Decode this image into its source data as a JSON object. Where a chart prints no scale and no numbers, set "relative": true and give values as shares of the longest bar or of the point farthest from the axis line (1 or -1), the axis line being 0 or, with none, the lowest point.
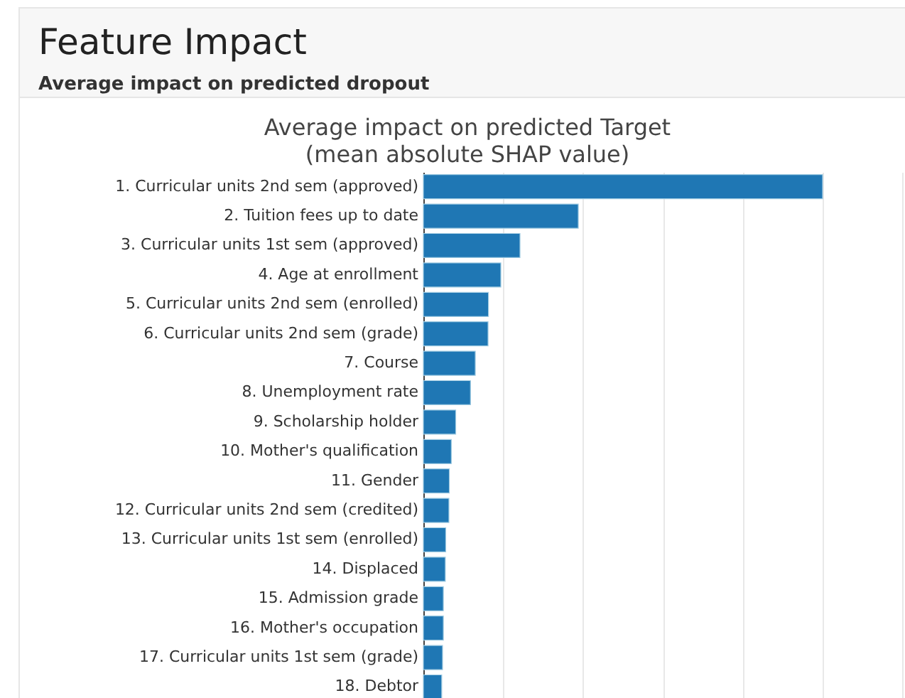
{
  "chart_data": {
    "type": "bar",
    "orientation": "horizontal",
    "relative": true,
    "title": "Feature Impact",
    "subtitle": "Average impact on predicted dropout",
    "annotations": [
      "Average impact on predicted Target",
      "(mean absolute SHAP value)"
    ],
    "categories": [
      "1. Curricular units 2nd sem (approved)",
      "2. Tuition fees up to date",
      "3. Curricular units 1st sem (approved)",
      "4. Age at enrollment",
      "5. Curricular units 2nd sem (enrolled)",
      "6. Curricular units 2nd sem (grade)",
      "7. Course",
      "8. Unemployment rate",
      "9. Scholarship holder",
      "10. Mother's qualification",
      "11. Gender",
      "12. Curricular units 2nd sem (credited)",
      "13. Curricular units 1st sem (enrolled)",
      "14. Displaced",
      "15. Admission grade",
      "16. Mother's occupation",
      "17. Curricular units 1st sem (grade)",
      "18. Debtor"
    ],
    "values": [
      1,
      0.388,
      0.242,
      0.194,
      0.163,
      0.162,
      0.13,
      0.118,
      0.081,
      0.07,
      0.065,
      0.064,
      0.056,
      0.055,
      0.05,
      0.05,
      0.048,
      0.046
    ],
    "color": "#1f77b4",
    "grid": "x"
  }
}
